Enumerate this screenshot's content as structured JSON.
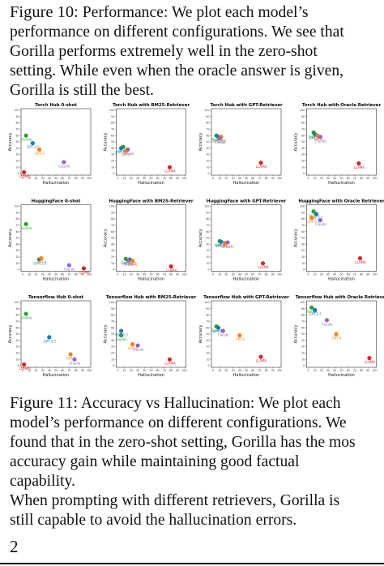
{
  "caption_top": {
    "label": "Figure 10:",
    "lines": [
      " Performance: We plot each model’s",
      "performance on different configurations. We see that",
      "Gorilla performs extremely well in the zero-shot",
      "setting. While even when the oracle answer is given,",
      "Gorilla is still the best."
    ]
  },
  "caption_bottom": {
    "label": "Figure 11:",
    "lines": [
      " Accuracy vs Hallucination: We plot each",
      "model’s performance on different configurations. We",
      "found that in the zero-shot setting, Gorilla has the mos",
      "accuracy gain while maintaining good factual",
      "capability.",
      "When prompting with different retrievers, Gorilla is",
      "still capable to avoid the hallucination errors."
    ]
  },
  "page_number": "2",
  "colors": {
    "Gorilla": "#2ca02c",
    "GPT-3.5": "#1f77b4",
    "GPT-4": "#ff7f0e",
    "Claude": "#9467bd",
    "LLAMA": "#d62728"
  },
  "chart_data": [
    {
      "type": "scatter",
      "title": "Torch Hub 0-shot",
      "xlabel": "Hallucination",
      "ylabel": "Accuracy",
      "xlim": [
        0,
        100
      ],
      "ylim": [
        0,
        100
      ],
      "grid": false,
      "series": [
        {
          "name": "Gorilla",
          "x": 5,
          "y": 60
        },
        {
          "name": "GPT-3.5",
          "x": 15,
          "y": 48
        },
        {
          "name": "GPT-4",
          "x": 25,
          "y": 38
        },
        {
          "name": "Claude",
          "x": 62,
          "y": 18
        },
        {
          "name": "LLAMA",
          "x": 2,
          "y": 2
        }
      ]
    },
    {
      "type": "scatter",
      "title": "Torch Hub with BM25-Retriever",
      "xlabel": "Hallucination",
      "ylabel": "Accuracy",
      "xlim": [
        0,
        100
      ],
      "ylim": [
        0,
        100
      ],
      "grid": false,
      "series": [
        {
          "name": "Gorilla",
          "x": 8,
          "y": 42
        },
        {
          "name": "GPT-3.5",
          "x": 5,
          "y": 40
        },
        {
          "name": "GPT-4",
          "x": 12,
          "y": 36
        },
        {
          "name": "Claude",
          "x": 15,
          "y": 38
        },
        {
          "name": "LLAMA",
          "x": 78,
          "y": 10
        }
      ]
    },
    {
      "type": "scatter",
      "title": "Torch Hub with GPT-Retriever",
      "xlabel": "Hallucination",
      "ylabel": "Accuracy",
      "xlim": [
        0,
        100
      ],
      "ylim": [
        0,
        100
      ],
      "grid": false,
      "series": [
        {
          "name": "Gorilla",
          "x": 5,
          "y": 60
        },
        {
          "name": "GPT-3.5",
          "x": 8,
          "y": 58
        },
        {
          "name": "GPT-4",
          "x": 12,
          "y": 58
        },
        {
          "name": "Claude",
          "x": 10,
          "y": 56
        },
        {
          "name": "LLAMA",
          "x": 72,
          "y": 17
        }
      ]
    },
    {
      "type": "scatter",
      "title": "Torch Hub with Oracle Retriever",
      "xlabel": "Hallucination",
      "ylabel": "Accuracy",
      "xlim": [
        0,
        100
      ],
      "ylim": [
        0,
        100
      ],
      "grid": false,
      "series": [
        {
          "name": "Gorilla",
          "x": 8,
          "y": 65
        },
        {
          "name": "GPT-3.5",
          "x": 10,
          "y": 62
        },
        {
          "name": "GPT-4",
          "x": 14,
          "y": 60
        },
        {
          "name": "Claude",
          "x": 18,
          "y": 58
        },
        {
          "name": "LLAMA",
          "x": 76,
          "y": 16
        }
      ]
    },
    {
      "type": "scatter",
      "title": "HuggingFace 0-shot",
      "xlabel": "Hallucination",
      "ylabel": "Accuracy",
      "xlim": [
        0,
        100
      ],
      "ylim": [
        0,
        100
      ],
      "grid": false,
      "series": [
        {
          "name": "Gorilla",
          "x": 5,
          "y": 72
        },
        {
          "name": "GPT-3.5",
          "x": 25,
          "y": 16
        },
        {
          "name": "GPT-4",
          "x": 28,
          "y": 18
        },
        {
          "name": "Claude",
          "x": 70,
          "y": 7
        },
        {
          "name": "LLAMA",
          "x": 92,
          "y": 2
        }
      ]
    },
    {
      "type": "scatter",
      "title": "HuggingFace with BM25-Retriever",
      "xlabel": "Hallucination",
      "ylabel": "Accuracy",
      "xlim": [
        0,
        100
      ],
      "ylim": [
        0,
        100
      ],
      "grid": false,
      "series": [
        {
          "name": "Gorilla",
          "x": 12,
          "y": 17
        },
        {
          "name": "GPT-3.5",
          "x": 18,
          "y": 16
        },
        {
          "name": "GPT-4",
          "x": 22,
          "y": 14
        },
        {
          "name": "Claude",
          "x": 15,
          "y": 15
        },
        {
          "name": "LLAMA",
          "x": 80,
          "y": 5
        }
      ]
    },
    {
      "type": "scatter",
      "title": "HuggingFace with GPT-Retriever",
      "xlabel": "Hallucination",
      "ylabel": "Accuracy",
      "xlim": [
        0,
        100
      ],
      "ylim": [
        0,
        100
      ],
      "grid": false,
      "series": [
        {
          "name": "Gorilla",
          "x": 10,
          "y": 45
        },
        {
          "name": "GPT-3.5",
          "x": 12,
          "y": 44
        },
        {
          "name": "GPT-4",
          "x": 18,
          "y": 42
        },
        {
          "name": "Claude",
          "x": 22,
          "y": 43
        },
        {
          "name": "LLAMA",
          "x": 75,
          "y": 10
        }
      ]
    },
    {
      "type": "scatter",
      "title": "HuggingFace with Oracle Retriever",
      "xlabel": "Hallucination",
      "ylabel": "Accuracy",
      "xlim": [
        0,
        100
      ],
      "ylim": [
        0,
        100
      ],
      "grid": false,
      "series": [
        {
          "name": "Gorilla",
          "x": 8,
          "y": 92
        },
        {
          "name": "GPT-3.5",
          "x": 12,
          "y": 88
        },
        {
          "name": "GPT-4",
          "x": 5,
          "y": 82
        },
        {
          "name": "Claude",
          "x": 18,
          "y": 78
        },
        {
          "name": "LLAMA",
          "x": 78,
          "y": 18
        }
      ]
    },
    {
      "type": "scatter",
      "title": "Tensorflow Hub 0-shot",
      "xlabel": "Hallucination",
      "ylabel": "Accuracy",
      "xlim": [
        0,
        100
      ],
      "ylim": [
        0,
        100
      ],
      "grid": false,
      "series": [
        {
          "name": "Gorilla",
          "x": 5,
          "y": 82
        },
        {
          "name": "GPT-3.5",
          "x": 40,
          "y": 45
        },
        {
          "name": "GPT-4",
          "x": 72,
          "y": 18
        },
        {
          "name": "Claude",
          "x": 78,
          "y": 10
        },
        {
          "name": "LLAMA",
          "x": 2,
          "y": 2
        }
      ]
    },
    {
      "type": "scatter",
      "title": "Tensorflow Hub with BM25-Retriever",
      "xlabel": "Hallucination",
      "ylabel": "Accuracy",
      "xlim": [
        0,
        100
      ],
      "ylim": [
        0,
        100
      ],
      "grid": false,
      "series": [
        {
          "name": "Gorilla",
          "x": 5,
          "y": 48
        },
        {
          "name": "GPT-3.5",
          "x": 5,
          "y": 55
        },
        {
          "name": "GPT-4",
          "x": 22,
          "y": 34
        },
        {
          "name": "Claude",
          "x": 30,
          "y": 32
        },
        {
          "name": "LLAMA",
          "x": 78,
          "y": 10
        }
      ]
    },
    {
      "type": "scatter",
      "title": "Tensorflow Hub with GPT-Retriever",
      "xlabel": "Hallucination",
      "ylabel": "Accuracy",
      "xlim": [
        0,
        100
      ],
      "ylim": [
        0,
        100
      ],
      "grid": false,
      "series": [
        {
          "name": "Gorilla",
          "x": 5,
          "y": 62
        },
        {
          "name": "GPT-3.5",
          "x": 8,
          "y": 60
        },
        {
          "name": "GPT-4",
          "x": 40,
          "y": 48
        },
        {
          "name": "Claude",
          "x": 15,
          "y": 55
        },
        {
          "name": "LLAMA",
          "x": 72,
          "y": 14
        }
      ]
    },
    {
      "type": "scatter",
      "title": "Tensorflow Hub with Oracle Retriever",
      "xlabel": "Hallucination",
      "ylabel": "Accuracy",
      "xlim": [
        0,
        100
      ],
      "ylim": [
        0,
        100
      ],
      "grid": false,
      "series": [
        {
          "name": "Gorilla",
          "x": 5,
          "y": 92
        },
        {
          "name": "GPT-3.5",
          "x": 10,
          "y": 88
        },
        {
          "name": "GPT-4",
          "x": 42,
          "y": 50
        },
        {
          "name": "Claude",
          "x": 28,
          "y": 72
        },
        {
          "name": "LLAMA",
          "x": 92,
          "y": 12
        }
      ]
    }
  ]
}
